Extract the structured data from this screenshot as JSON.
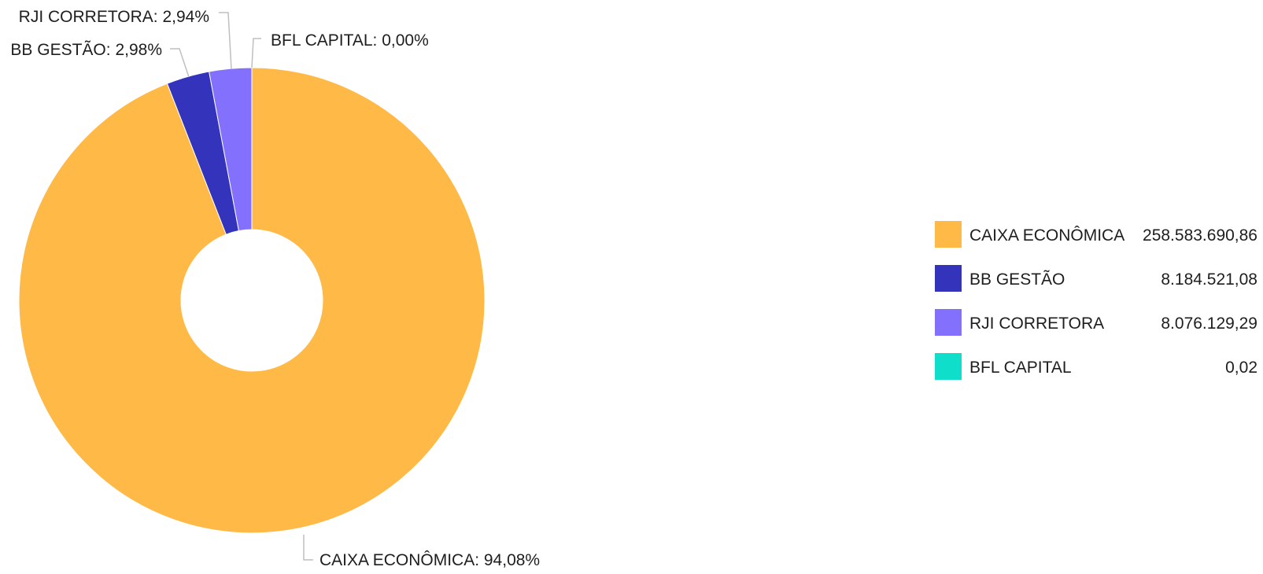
{
  "chart_data": {
    "type": "pie",
    "variant": "donut",
    "slices": [
      {
        "name": "CAIXA ECONÔMICA",
        "percent": 94.08,
        "percent_label": "94,08%",
        "value": 258583690.86,
        "value_label": "258.583.690,86",
        "color": "#FFB946"
      },
      {
        "name": "BB GESTÃO",
        "percent": 2.98,
        "percent_label": "2,98%",
        "value": 8184521.08,
        "value_label": "8.184.521,08",
        "color": "#3333BB"
      },
      {
        "name": "RJI CORRETORA",
        "percent": 2.94,
        "percent_label": "2,94%",
        "value": 8076129.29,
        "value_label": "8.076.129,29",
        "color": "#8370FC"
      },
      {
        "name": "BFL CAPITAL",
        "percent": 0.0,
        "percent_label": "0,00%",
        "value": 0.02,
        "value_label": "0,02",
        "color": "#0FDECA"
      }
    ],
    "legend_position": "right"
  }
}
